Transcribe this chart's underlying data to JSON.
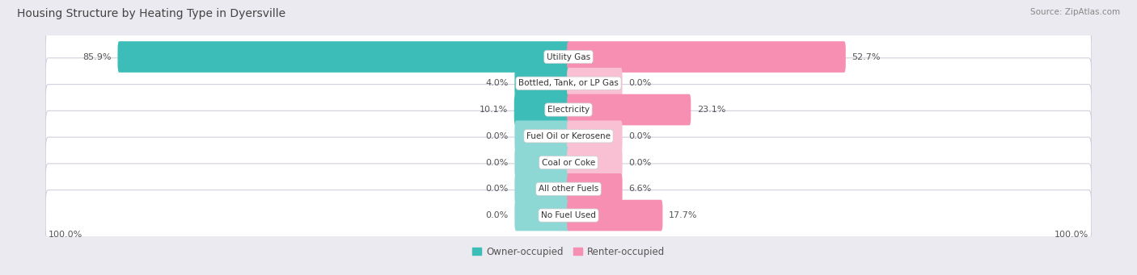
{
  "title": "Housing Structure by Heating Type in Dyersville",
  "source": "Source: ZipAtlas.com",
  "categories": [
    "Utility Gas",
    "Bottled, Tank, or LP Gas",
    "Electricity",
    "Fuel Oil or Kerosene",
    "Coal or Coke",
    "All other Fuels",
    "No Fuel Used"
  ],
  "owner_values": [
    85.9,
    4.0,
    10.1,
    0.0,
    0.0,
    0.0,
    0.0
  ],
  "renter_values": [
    52.7,
    0.0,
    23.1,
    0.0,
    0.0,
    6.6,
    17.7
  ],
  "owner_color": "#3DBDB8",
  "renter_color": "#F78FB3",
  "renter_color_light": "#F9C0D4",
  "owner_color_light": "#8DD8D5",
  "bg_color": "#eaeaf0",
  "row_bg_color": "#ffffff",
  "row_edge_color": "#d0d0dd",
  "title_fontsize": 10,
  "source_fontsize": 7.5,
  "label_fontsize": 8,
  "category_fontsize": 7.5,
  "axis_label_left": "100.0%",
  "axis_label_right": "100.0%",
  "max_value": 100.0,
  "min_bar_width": 10.0
}
